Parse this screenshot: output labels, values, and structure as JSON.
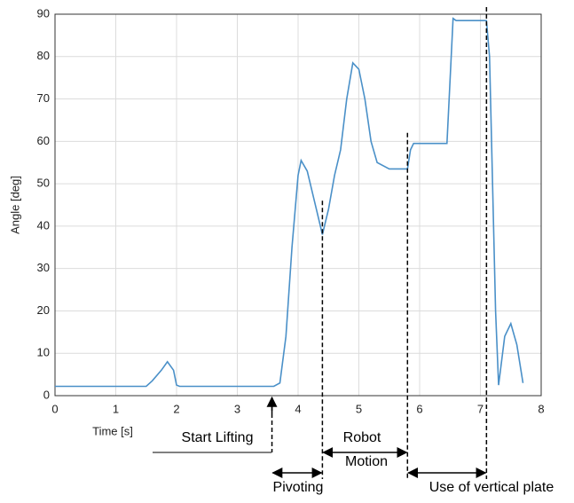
{
  "chart_data": {
    "type": "line",
    "x_label": "Time [s]",
    "y_label": "Angle [deg]",
    "xlim": [
      0,
      8
    ],
    "ylim": [
      0,
      90
    ],
    "xticks": [
      0,
      1,
      2,
      3,
      4,
      5,
      6,
      7,
      8
    ],
    "yticks": [
      0,
      10,
      20,
      30,
      40,
      50,
      60,
      70,
      80,
      90
    ],
    "grid": true,
    "series": [
      {
        "name": "Angle",
        "color": "#4a90c8",
        "x": [
          0,
          1.5,
          1.6,
          1.75,
          1.85,
          1.95,
          2.0,
          2.05,
          3.6,
          3.7,
          3.8,
          3.9,
          4.0,
          4.05,
          4.15,
          4.3,
          4.4,
          4.5,
          4.6,
          4.7,
          4.8,
          4.9,
          5.0,
          5.1,
          5.2,
          5.3,
          5.5,
          5.8,
          5.85,
          5.9,
          6.45,
          6.55,
          6.6,
          7.1,
          7.15,
          7.2,
          7.25,
          7.3,
          7.4,
          7.5,
          7.6,
          7.7
        ],
        "values": [
          2.2,
          2.2,
          3.5,
          6,
          8,
          6,
          2.5,
          2.2,
          2.2,
          3,
          14,
          35,
          52,
          55.5,
          53,
          44,
          38,
          44,
          52,
          58,
          70,
          78.5,
          77,
          70,
          60,
          55,
          53.5,
          53.5,
          58,
          59.5,
          59.5,
          89,
          88.5,
          88.5,
          80,
          50,
          20,
          2.5,
          14,
          17,
          12,
          3
        ]
      }
    ],
    "annotations": [
      "Start Lifting",
      "Pivoting",
      "Robot",
      "Motion",
      "Use of vertical plate"
    ],
    "event_times": [
      3.57,
      4.4,
      5.8,
      7.1
    ]
  }
}
